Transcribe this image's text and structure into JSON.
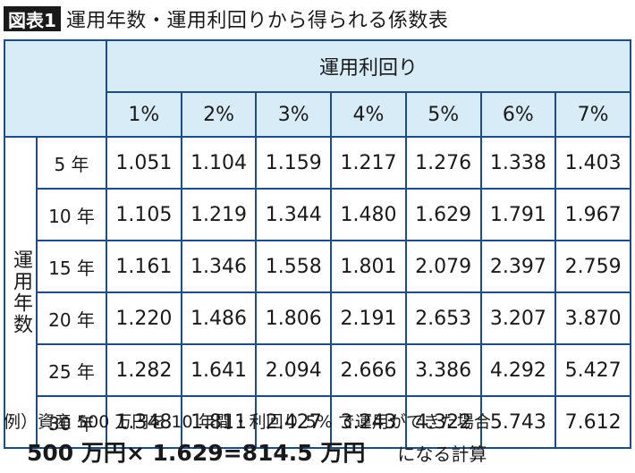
{
  "figure": {
    "badge": "図表1",
    "title": "運用年数・運用利回りから得られる係数表"
  },
  "table": {
    "col_group_label": "運用利回り",
    "row_group_label": "運用年数",
    "columns": [
      "1%",
      "2%",
      "3%",
      "4%",
      "5%",
      "6%",
      "7%"
    ],
    "rows": [
      {
        "year": "5 年",
        "values": [
          "1.051",
          "1.104",
          "1.159",
          "1.217",
          "1.276",
          "1.338",
          "1.403"
        ]
      },
      {
        "year": "10 年",
        "values": [
          "1.105",
          "1.219",
          "1.344",
          "1.480",
          "1.629",
          "1.791",
          "1.967"
        ]
      },
      {
        "year": "15 年",
        "values": [
          "1.161",
          "1.346",
          "1.558",
          "1.801",
          "2.079",
          "2.397",
          "2.759"
        ]
      },
      {
        "year": "20 年",
        "values": [
          "1.220",
          "1.486",
          "1.806",
          "2.191",
          "2.653",
          "3.207",
          "3.870"
        ]
      },
      {
        "year": "25 年",
        "values": [
          "1.282",
          "1.641",
          "2.094",
          "2.666",
          "3.386",
          "4.292",
          "5.427"
        ]
      },
      {
        "year": "30 年",
        "values": [
          "1.348",
          "1.811",
          "2.427",
          "3.243",
          "4.322",
          "5.743",
          "7.612"
        ]
      }
    ],
    "highlight": {
      "row": 1,
      "col": 4
    },
    "colors": {
      "border": "#1e4c86",
      "header_fill": "#d7ecf7"
    }
  },
  "note": {
    "example": "例）資産 500 万円を 10 年間・利回り 5% で運用ができた場合",
    "equation": "500 万円× 1.629=814.5 万円",
    "suffix": "になる計算"
  }
}
